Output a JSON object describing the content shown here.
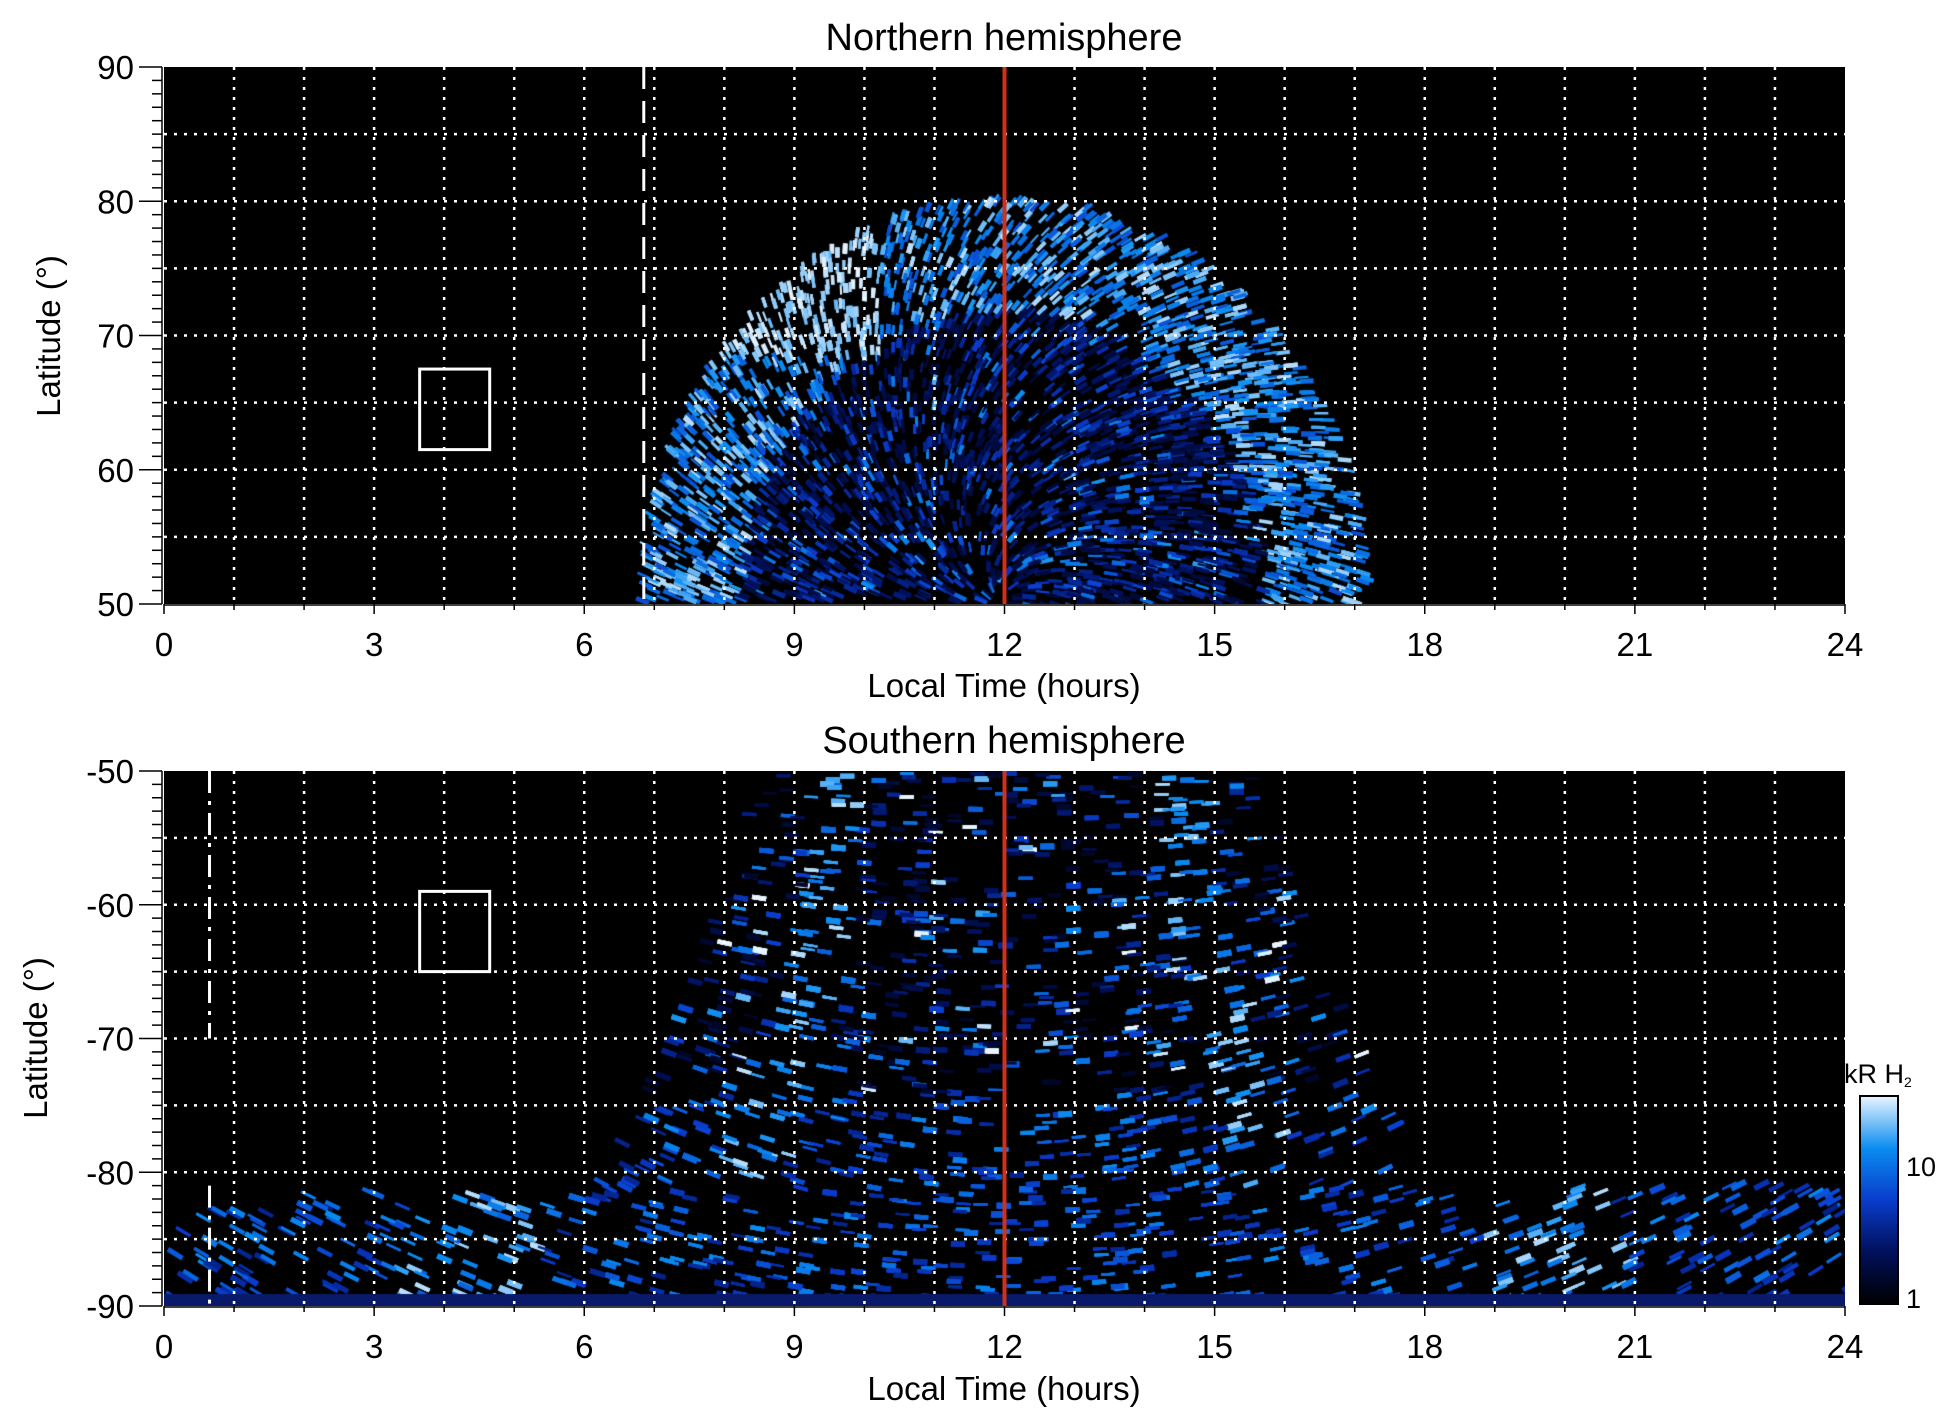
{
  "chart_data": [
    {
      "type": "heatmap",
      "title": "Northern hemisphere",
      "xlabel": "Local Time (hours)",
      "ylabel": "Latitude (°)",
      "xlim": [
        0,
        24
      ],
      "ylim": [
        50,
        90
      ],
      "xticks": [
        "0",
        "3",
        "6",
        "9",
        "12",
        "15",
        "18",
        "21",
        "24"
      ],
      "yticks": [
        "50",
        "60",
        "70",
        "80",
        "90"
      ],
      "grid": true,
      "reference_line_lt": 12,
      "terminator_lt": 6.85,
      "box": {
        "lt": [
          3.65,
          4.65
        ],
        "lat": [
          61.5,
          67.5
        ]
      },
      "emission_region": {
        "lt_center": 12,
        "lt_halfwidth": 5.1,
        "lat_max": 80
      }
    },
    {
      "type": "heatmap",
      "title": "Southern hemisphere",
      "xlabel": "Local Time (hours)",
      "ylabel": "Latitude (°)",
      "xlim": [
        0,
        24
      ],
      "ylim": [
        -90,
        -50
      ],
      "xticks": [
        "0",
        "3",
        "6",
        "9",
        "12",
        "15",
        "18",
        "21",
        "24"
      ],
      "yticks": [
        "-90",
        "-80",
        "-70",
        "-60",
        "-50"
      ],
      "grid": true,
      "reference_line_lt": 12,
      "terminator_lt": 0.65,
      "box": {
        "lt": [
          3.65,
          4.65
        ],
        "lat": [
          -65,
          -59
        ]
      },
      "emission_region": {
        "lt_center": 12,
        "lt_halfwidth": 7,
        "lat_edge": -50
      }
    }
  ],
  "colorbar": {
    "label": "kR H",
    "label_sub": "2",
    "scale": "log",
    "range": [
      1,
      30
    ],
    "ticks": [
      "1",
      "10"
    ],
    "colors": [
      "#000000",
      "#00105a",
      "#0a3ccc",
      "#0a8cf0",
      "#e8f4ff"
    ]
  },
  "colors": {
    "reference_line": "#d0311a",
    "grid": "#ffffff",
    "background": "#000000"
  }
}
